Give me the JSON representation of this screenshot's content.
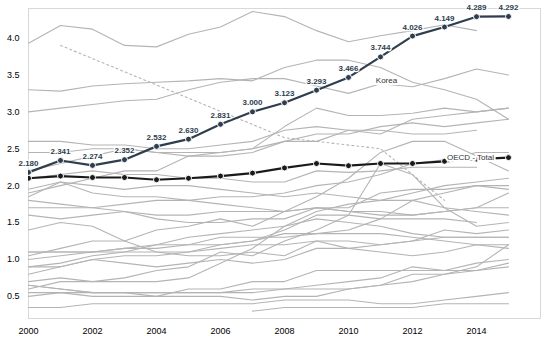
{
  "chart_data": {
    "type": "line",
    "x": [
      2000,
      2001,
      2002,
      2003,
      2004,
      2005,
      2006,
      2007,
      2008,
      2009,
      2010,
      2011,
      2012,
      2013,
      2014,
      2015
    ],
    "xlim": [
      2000,
      2016
    ],
    "xticks": [
      2000,
      2002,
      2004,
      2006,
      2008,
      2010,
      2012,
      2014
    ],
    "ylim": [
      0.2,
      4.4
    ],
    "yticks": [
      0.5,
      {
        "value": 1,
        "label": "1.0"
      },
      1.5,
      {
        "value": 2,
        "label": "2.0"
      },
      2.5,
      {
        "value": 3,
        "label": "3.0"
      },
      3.5,
      {
        "value": 4,
        "label": "4.0"
      }
    ],
    "grid": false,
    "series": [
      {
        "color": "#b4b4b4",
        "values": [
          3.93,
          4.17,
          4.12,
          3.9,
          3.88,
          4.05,
          4.15,
          4.36,
          4.29,
          4.1,
          3.95,
          4.03,
          4.1,
          4.18,
          4.1,
          null
        ]
      },
      {
        "color": "#b4b4b4",
        "line_style": "dotted",
        "values": [
          null,
          3.9,
          null,
          null,
          null,
          null,
          null,
          null,
          2.65,
          null,
          null,
          2.5,
          null,
          1.8,
          null,
          null
        ]
      },
      {
        "color": "#b4b4b4",
        "values": [
          3.3,
          3.28,
          3.35,
          3.38,
          3.4,
          3.42,
          3.45,
          3.42,
          3.6,
          3.7,
          3.7,
          3.6,
          3.4,
          3.3,
          3.17,
          2.9
        ]
      },
      {
        "color": "#b4b4b4",
        "values": [
          3.0,
          3.05,
          3.1,
          3.15,
          3.17,
          3.3,
          3.4,
          3.45,
          3.45,
          3.35,
          3.25,
          3.38,
          3.34,
          3.45,
          3.58,
          3.5
        ]
      },
      {
        "color": "#b4b4b4",
        "values": [
          2.2,
          2.3,
          2.4,
          2.5,
          2.45,
          2.4,
          2.45,
          2.5,
          2.8,
          3.05,
          2.95,
          2.95,
          2.98,
          3.05,
          3.0,
          3.05
        ]
      },
      {
        "color": "#b4b4b4",
        "values": [
          2.45,
          2.45,
          2.5,
          2.5,
          2.45,
          2.45,
          2.45,
          2.5,
          2.6,
          2.7,
          2.7,
          2.8,
          2.85,
          2.8,
          2.85,
          2.9
        ]
      },
      {
        "color": "#b4b4b4",
        "values": [
          1.9,
          2.0,
          2.1,
          2.2,
          2.2,
          2.4,
          2.4,
          2.45,
          2.6,
          2.6,
          2.75,
          2.7,
          2.9,
          2.95,
          3.0,
          3.05
        ]
      },
      {
        "color": "#b4b4b4",
        "values": [
          2.6,
          2.6,
          2.55,
          2.55,
          2.5,
          2.5,
          2.55,
          2.6,
          2.75,
          2.8,
          2.75,
          2.75,
          2.7,
          2.7,
          2.75,
          null
        ]
      },
      {
        "color": "#b4b4b4",
        "values": [
          2.1,
          2.15,
          2.2,
          2.15,
          2.15,
          2.1,
          2.1,
          2.05,
          2.05,
          2.2,
          2.18,
          2.2,
          2.25,
          2.25,
          2.25,
          null
        ]
      },
      {
        "color": "#b4b4b4",
        "values": [
          1.95,
          2.05,
          1.9,
          1.85,
          1.85,
          1.8,
          1.85,
          1.85,
          1.9,
          2.0,
          2.05,
          2.15,
          2.3,
          2.35,
          2.45,
          2.45
        ]
      },
      {
        "color": "#b4b4b4",
        "values": [
          1.4,
          1.5,
          1.45,
          1.25,
          1.4,
          1.45,
          1.55,
          1.45,
          1.65,
          1.85,
          2.1,
          2.45,
          2.6,
          2.6,
          2.4,
          2.2
        ]
      },
      {
        "color": "#b4b4b4",
        "values": [
          0.9,
          0.95,
          1.05,
          1.1,
          1.2,
          1.3,
          1.35,
          1.4,
          1.45,
          1.65,
          1.75,
          1.8,
          1.9,
          2.0,
          2.05,
          2.1
        ]
      },
      {
        "color": "#b4b4b4",
        "values": [
          1.85,
          2.05,
          2.0,
          1.95,
          2.0,
          2.0,
          1.95,
          1.9,
          1.85,
          1.9,
          1.85,
          1.8,
          1.8,
          1.7,
          1.65,
          1.6
        ]
      },
      {
        "color": "#b4b4b4",
        "values": [
          1.7,
          1.7,
          1.7,
          1.65,
          1.6,
          1.6,
          1.65,
          1.65,
          1.65,
          1.7,
          1.65,
          1.65,
          1.6,
          1.65,
          1.7,
          1.7
        ]
      },
      {
        "color": "#b4b4b4",
        "values": [
          1.8,
          1.75,
          1.7,
          1.75,
          1.8,
          1.8,
          1.75,
          1.7,
          1.65,
          1.7,
          1.7,
          1.9,
          1.95,
          1.95,
          2.0,
          2.0
        ]
      },
      {
        "color": "#b4b4b4",
        "values": [
          1.1,
          1.1,
          1.1,
          1.15,
          1.15,
          1.2,
          1.3,
          1.3,
          1.3,
          1.35,
          1.4,
          1.55,
          1.8,
          1.9,
          2.0,
          1.95
        ]
      },
      {
        "color": "#b4b4b4",
        "values": [
          1.6,
          1.55,
          1.6,
          1.65,
          1.55,
          1.5,
          1.5,
          1.55,
          1.55,
          1.7,
          1.65,
          1.6,
          1.6,
          1.65,
          1.7,
          1.9
        ]
      },
      {
        "color": "#b4b4b4",
        "values": [
          1.1,
          1.1,
          1.1,
          1.15,
          1.2,
          1.2,
          1.2,
          1.25,
          1.4,
          1.6,
          1.6,
          1.55,
          1.55,
          1.55,
          1.5,
          null
        ]
      },
      {
        "color": "#b4b4b4",
        "values": [
          0.9,
          0.9,
          1.0,
          1.05,
          1.05,
          1.1,
          1.2,
          1.25,
          1.35,
          1.35,
          1.35,
          1.35,
          1.3,
          1.25,
          1.2,
          1.2
        ]
      },
      {
        "color": "#b4b4b4",
        "values": [
          1.0,
          1.05,
          1.1,
          1.1,
          1.1,
          1.1,
          1.15,
          1.2,
          1.2,
          1.25,
          1.25,
          1.2,
          1.25,
          1.3,
          1.3,
          1.3
        ]
      },
      {
        "color": "#b4b4b4",
        "values": [
          0.8,
          0.9,
          1.0,
          0.95,
          0.9,
          0.95,
          1.0,
          0.95,
          1.0,
          1.15,
          1.15,
          1.2,
          1.25,
          1.4,
          1.35,
          1.4
        ]
      },
      {
        "color": "#b4b4b4",
        "values": [
          0.7,
          0.75,
          0.7,
          0.7,
          0.7,
          0.75,
          0.95,
          1.15,
          1.45,
          1.55,
          1.5,
          1.45,
          1.35,
          1.3,
          1.3,
          1.3
        ]
      },
      {
        "color": "#b4b4b4",
        "values": [
          1.05,
          1.15,
          1.25,
          1.25,
          1.1,
          1.05,
          1.05,
          1.1,
          1.05,
          1.25,
          1.15,
          1.1,
          1.05,
          1.1,
          1.2,
          1.15
        ]
      },
      {
        "color": "#b4b4b4",
        "values": [
          0.6,
          0.7,
          0.7,
          0.75,
          0.85,
          0.9,
          1.1,
          1.05,
          1.25,
          1.4,
          1.6,
          2.3,
          2.15,
          1.7,
          1.45,
          1.5
        ]
      },
      {
        "color": "#b4b4b4",
        "values": [
          0.65,
          0.6,
          0.55,
          0.55,
          0.55,
          0.55,
          0.55,
          0.55,
          0.6,
          0.65,
          0.7,
          0.75,
          0.9,
          0.85,
          0.95,
          1.0
        ]
      },
      {
        "color": "#b4b4b4",
        "values": [
          0.5,
          0.55,
          0.5,
          0.5,
          0.5,
          0.6,
          0.6,
          0.7,
          0.7,
          0.85,
          0.85,
          0.85,
          0.85,
          0.85,
          0.85,
          0.9
        ]
      },
      {
        "color": "#b4b4b4",
        "values": [
          0.55,
          0.55,
          0.55,
          0.55,
          0.55,
          0.55,
          0.55,
          0.6,
          0.6,
          0.6,
          0.6,
          0.65,
          0.7,
          0.8,
          0.85,
          0.95
        ]
      },
      {
        "color": "#b4b4b4",
        "values": [
          0.35,
          0.35,
          0.4,
          0.4,
          0.4,
          0.4,
          0.4,
          0.4,
          0.45,
          0.45,
          0.45,
          0.4,
          0.4,
          0.45,
          0.5,
          0.55
        ]
      },
      {
        "color": "#b4b4b4",
        "values": [
          null,
          null,
          null,
          null,
          null,
          null,
          null,
          0.3,
          0.35,
          0.35,
          0.35,
          0.35,
          0.35,
          0.4,
          0.4,
          0.4
        ]
      },
      {
        "color": "#b4b4b4",
        "values": [
          0.65,
          0.6,
          0.55,
          0.55,
          0.5,
          0.5,
          0.5,
          0.45,
          0.5,
          0.5,
          0.6,
          0.65,
          0.8,
          0.8,
          0.9,
          1.2
        ]
      },
      {
        "name": "OECD - Total",
        "color": "#1a1a1a",
        "marker": "circle",
        "values": [
          2.1,
          2.13,
          2.11,
          2.11,
          2.08,
          2.1,
          2.13,
          2.17,
          2.24,
          2.3,
          2.27,
          2.3,
          2.3,
          2.33,
          2.36,
          2.38
        ]
      },
      {
        "name": "Korea",
        "color": "#2f3e4e",
        "marker": "circle",
        "data_labels": true,
        "values": [
          2.18,
          2.341,
          2.274,
          2.352,
          2.532,
          2.63,
          2.831,
          3.0,
          3.123,
          3.293,
          3.466,
          3.744,
          4.026,
          4.149,
          4.289,
          4.292
        ],
        "value_labels": [
          "2.180",
          "2.341",
          "2.274",
          "2.352",
          "2.532",
          "2.630",
          "2.831",
          "3.000",
          "3.123",
          "3.293",
          "3.466",
          "3.744",
          "4.026",
          "4.149",
          "4.289",
          "4.292"
        ]
      }
    ]
  }
}
